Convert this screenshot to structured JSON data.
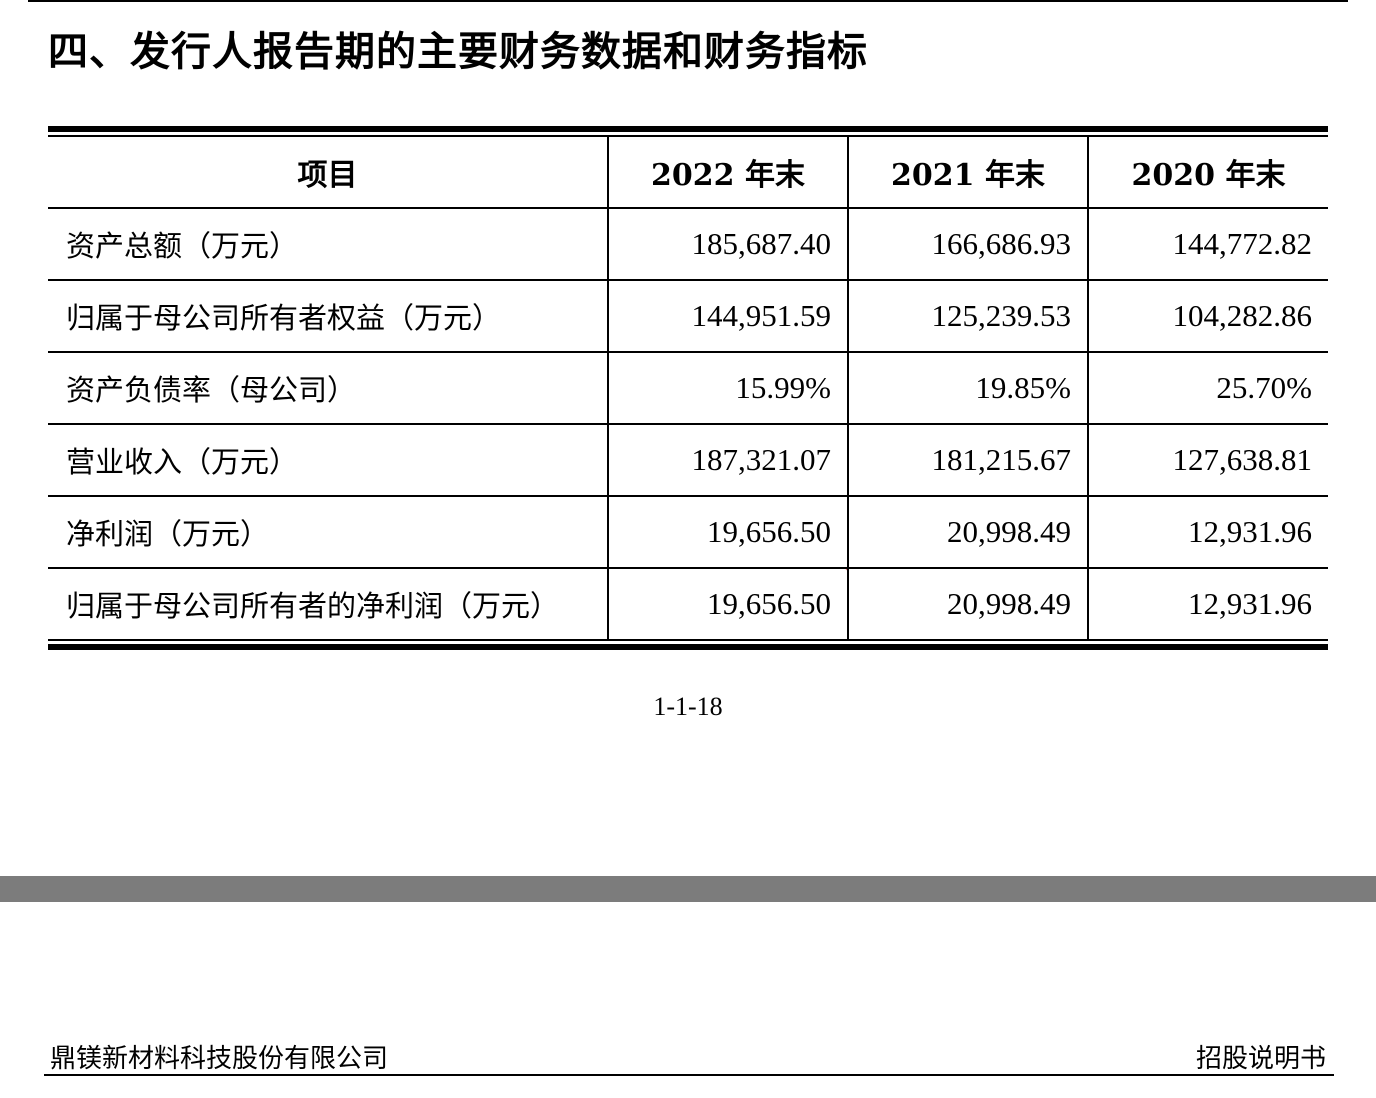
{
  "heading": "四、发行人报告期的主要财务数据和财务指标",
  "table": {
    "headers": [
      "项目",
      "2022 年末",
      "2021 年末",
      "2020 年末"
    ],
    "rows": [
      {
        "label": "资产总额（万元）",
        "values": [
          "185,687.40",
          "166,686.93",
          "144,772.82"
        ]
      },
      {
        "label": "归属于母公司所有者权益（万元）",
        "values": [
          "144,951.59",
          "125,239.53",
          "104,282.86"
        ]
      },
      {
        "label": "资产负债率（母公司）",
        "values": [
          "15.99%",
          "19.85%",
          "25.70%"
        ]
      },
      {
        "label": "营业收入（万元）",
        "values": [
          "187,321.07",
          "181,215.67",
          "127,638.81"
        ]
      },
      {
        "label": "净利润（万元）",
        "values": [
          "19,656.50",
          "20,998.49",
          "12,931.96"
        ]
      },
      {
        "label": "归属于母公司所有者的净利润（万元）",
        "values": [
          "19,656.50",
          "20,998.49",
          "12,931.96"
        ]
      }
    ],
    "highlight_color": "#e8262a"
  },
  "page_number": "1-1-18",
  "footer": {
    "company": "鼎镁新材料科技股份有限公司",
    "doc_type": "招股说明书"
  }
}
